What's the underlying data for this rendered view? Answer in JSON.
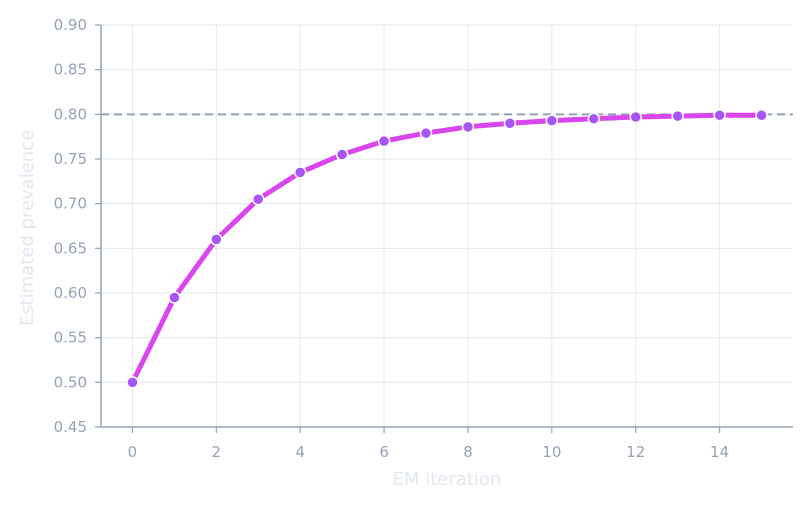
{
  "chart_data": {
    "type": "line",
    "title": "",
    "xlabel": "EM iteration",
    "ylabel": "Estimated prevalence",
    "xlim": [
      -0.75,
      15.75
    ],
    "ylim": [
      0.45,
      0.9
    ],
    "x_ticks": [
      0,
      2,
      4,
      6,
      8,
      10,
      12,
      14
    ],
    "y_ticks": [
      0.45,
      0.5,
      0.55,
      0.6,
      0.65,
      0.7,
      0.75,
      0.8,
      0.85,
      0.9
    ],
    "y_tick_labels": [
      "0.45",
      "0.50",
      "0.55",
      "0.60",
      "0.65",
      "0.70",
      "0.75",
      "0.80",
      "0.85",
      "0.90"
    ],
    "grid": true,
    "series": [
      {
        "x": [
          0,
          1,
          2,
          3,
          4,
          5,
          6,
          7,
          8,
          9,
          10,
          11,
          12,
          13,
          14,
          15
        ],
        "values": [
          0.5,
          0.595,
          0.66,
          0.705,
          0.735,
          0.755,
          0.77,
          0.779,
          0.786,
          0.79,
          0.793,
          0.795,
          0.797,
          0.798,
          0.799,
          0.799
        ],
        "color": "#d946ef",
        "marker_color": "#a855f7"
      }
    ],
    "reference_line": {
      "y": 0.8,
      "style": "dashed",
      "color": "#94a3b8"
    }
  }
}
